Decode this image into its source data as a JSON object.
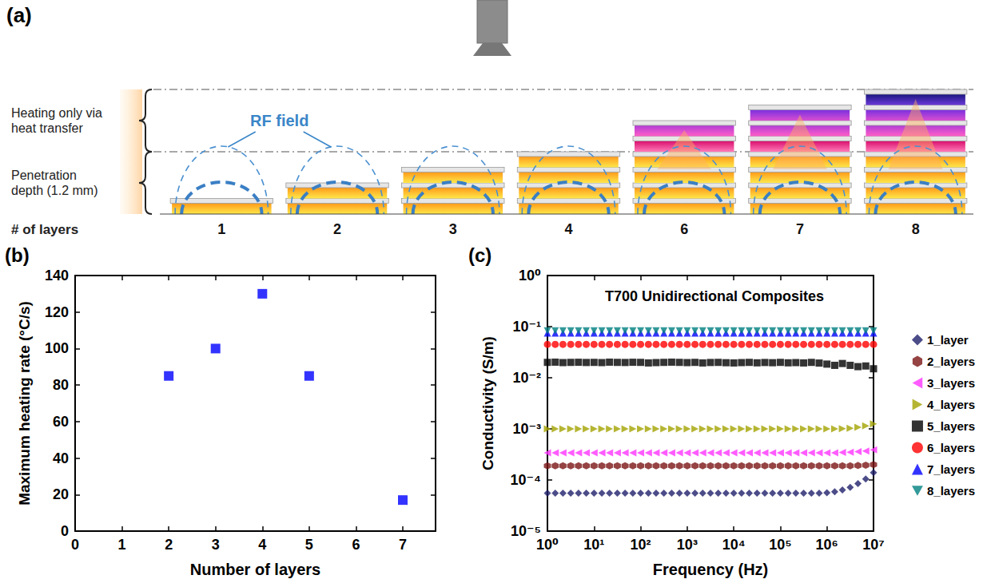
{
  "diagram": {
    "panel": "(a)",
    "heat_transfer_label": "Heating only via heat transfer",
    "penetration_label": "Penetration depth (1.2 mm)",
    "field_label": "RF field",
    "axis_label": "# of layers",
    "stacks": [
      1,
      2,
      3,
      4,
      6,
      7,
      8
    ]
  },
  "chart_data": [
    {
      "panel": "(b)",
      "type": "scatter",
      "x_label": "Number of layers",
      "y_label": "Maximum heating rate (°C/s)",
      "x": [
        2,
        3,
        4,
        5,
        7
      ],
      "values": [
        85,
        100,
        130,
        85,
        17
      ],
      "color": "#0000ff",
      "marker": "square",
      "xlim": [
        0,
        7.7
      ],
      "xticks": [
        0,
        1,
        2,
        3,
        4,
        5,
        6,
        7
      ],
      "ylim": [
        0,
        140
      ],
      "yticks": [
        0,
        20,
        40,
        60,
        80,
        100,
        120,
        140
      ],
      "grid": false
    },
    {
      "panel": "(c)",
      "type": "scatter",
      "title": "T700 Unidirectional Composites",
      "x_label": "Frequency (Hz)",
      "y_label": "Conductivity (S/m)",
      "log": true,
      "legend": "right",
      "grid": false,
      "xlim": [
        1,
        10000000
      ],
      "xticks": [
        {
          "value": 1,
          "label": "10⁰"
        },
        {
          "value": 10,
          "label": "10¹"
        },
        {
          "value": 100,
          "label": "10²"
        },
        {
          "value": 1000,
          "label": "10³"
        },
        {
          "value": 10000,
          "label": "10⁴"
        },
        {
          "value": 100000,
          "label": "10⁵"
        },
        {
          "value": 1000000,
          "label": "10⁶"
        },
        {
          "value": 10000000,
          "label": "10⁷"
        }
      ],
      "ylim": [
        1e-05,
        1
      ],
      "yticks": [
        {
          "value": 1e-05,
          "label": "10⁻⁵"
        },
        {
          "value": 0.0001,
          "label": "10⁻⁴"
        },
        {
          "value": 0.001,
          "label": "10⁻³"
        },
        {
          "value": 0.01,
          "label": "10⁻²"
        },
        {
          "value": 0.1,
          "label": "10⁻¹"
        },
        {
          "value": 1,
          "label": "10⁰"
        }
      ],
      "x": [
        1,
        1.47,
        2.15,
        3.16,
        4.64,
        6.81,
        10,
        14.7,
        21.5,
        31.6,
        46.4,
        68.1,
        100,
        147,
        215,
        316,
        464,
        681,
        1000,
        1470,
        2150,
        3160,
        4640,
        6810,
        10000,
        14700,
        21500,
        31600,
        46400,
        68100,
        100000,
        147000,
        215000,
        316000,
        464000,
        681000,
        1000000,
        1470000,
        2150000,
        3160000,
        4640000,
        6810000,
        10000000
      ],
      "series": [
        {
          "name": "1_layer",
          "color": "#1f1f6b",
          "marker": "diamond",
          "values": [
            5.5e-05,
            5.5e-05,
            5.5e-05,
            5.5e-05,
            5.5e-05,
            5.5e-05,
            5.5e-05,
            5.5e-05,
            5.5e-05,
            5.5e-05,
            5.5e-05,
            5.5e-05,
            5.5e-05,
            5.5e-05,
            5.5e-05,
            5.5e-05,
            5.5e-05,
            5.5e-05,
            5.5e-05,
            5.5e-05,
            5.5e-05,
            5.5e-05,
            5.5e-05,
            5.5e-05,
            5.5e-05,
            5.5e-05,
            5.5e-05,
            5.5e-05,
            5.5e-05,
            5.5e-05,
            5.5e-05,
            5.5e-05,
            5.5e-05,
            5.5e-05,
            5.5e-05,
            5.5e-05,
            5.6e-05,
            5.9e-05,
            6.4e-05,
            7.2e-05,
            8.5e-05,
            0.000105,
            0.00014
          ]
        },
        {
          "name": "2_layers",
          "color": "#7a1414",
          "marker": "hexagon",
          "values": [
            0.00019,
            0.00019,
            0.00019,
            0.00019,
            0.00019,
            0.00019,
            0.00019,
            0.00019,
            0.00019,
            0.00019,
            0.00019,
            0.00019,
            0.00019,
            0.00019,
            0.00019,
            0.00019,
            0.00019,
            0.00019,
            0.00019,
            0.00019,
            0.00019,
            0.00019,
            0.00019,
            0.00019,
            0.00019,
            0.00019,
            0.00019,
            0.00019,
            0.00019,
            0.00019,
            0.00019,
            0.00019,
            0.00019,
            0.00019,
            0.00019,
            0.00019,
            0.00019,
            0.00019,
            0.00019,
            0.00019,
            0.000192,
            0.000195,
            0.0002
          ]
        },
        {
          "name": "3_layers",
          "color": "#ff33ff",
          "marker": "triangle-left",
          "values": [
            0.00034,
            0.00034,
            0.00034,
            0.00034,
            0.00034,
            0.00034,
            0.00034,
            0.00034,
            0.00034,
            0.00034,
            0.00034,
            0.00034,
            0.00034,
            0.00034,
            0.00034,
            0.00034,
            0.00034,
            0.00034,
            0.00034,
            0.00034,
            0.00034,
            0.00034,
            0.00034,
            0.00034,
            0.00034,
            0.00034,
            0.00034,
            0.00034,
            0.00034,
            0.00034,
            0.00034,
            0.00034,
            0.00034,
            0.00034,
            0.00034,
            0.00034,
            0.00034,
            0.00034,
            0.000345,
            0.00035,
            0.00036,
            0.00037,
            0.00039
          ]
        },
        {
          "name": "4_layers",
          "color": "#a3a300",
          "marker": "triangle-right",
          "values": [
            0.001,
            0.001,
            0.001,
            0.001,
            0.001,
            0.001,
            0.001,
            0.001,
            0.001,
            0.001,
            0.001,
            0.001,
            0.001,
            0.001,
            0.001,
            0.001,
            0.001,
            0.001,
            0.001,
            0.001,
            0.001,
            0.001,
            0.001,
            0.001,
            0.001,
            0.001,
            0.001,
            0.001,
            0.001,
            0.001,
            0.001,
            0.001,
            0.001,
            0.001,
            0.001,
            0.001,
            0.001,
            0.001,
            0.00101,
            0.00103,
            0.00107,
            0.00114,
            0.00125
          ]
        },
        {
          "name": "5_layers",
          "color": "#000000",
          "marker": "square",
          "values": [
            0.02,
            0.0202,
            0.0198,
            0.02,
            0.0201,
            0.0199,
            0.02,
            0.0198,
            0.0202,
            0.02,
            0.0199,
            0.0201,
            0.02,
            0.0195,
            0.0198,
            0.02,
            0.0202,
            0.02,
            0.0198,
            0.02,
            0.0195,
            0.0199,
            0.02,
            0.0197,
            0.0195,
            0.0198,
            0.02,
            0.0196,
            0.0199,
            0.0197,
            0.02,
            0.0196,
            0.0198,
            0.0195,
            0.02,
            0.0194,
            0.0185,
            0.0175,
            0.019,
            0.0175,
            0.0165,
            0.017,
            0.015
          ]
        },
        {
          "name": "6_layers",
          "color": "#ff0000",
          "marker": "circle",
          "values": [
            0.045,
            0.045,
            0.045,
            0.045,
            0.045,
            0.045,
            0.045,
            0.045,
            0.045,
            0.045,
            0.045,
            0.045,
            0.045,
            0.045,
            0.045,
            0.045,
            0.045,
            0.045,
            0.045,
            0.045,
            0.045,
            0.045,
            0.045,
            0.045,
            0.045,
            0.045,
            0.045,
            0.045,
            0.045,
            0.045,
            0.045,
            0.045,
            0.045,
            0.045,
            0.045,
            0.045,
            0.045,
            0.045,
            0.045,
            0.045,
            0.045,
            0.045,
            0.045
          ]
        },
        {
          "name": "7_layers",
          "color": "#0000ff",
          "marker": "triangle",
          "values": [
            0.075,
            0.075,
            0.075,
            0.075,
            0.075,
            0.075,
            0.075,
            0.075,
            0.075,
            0.075,
            0.075,
            0.075,
            0.075,
            0.075,
            0.075,
            0.075,
            0.075,
            0.075,
            0.075,
            0.075,
            0.075,
            0.075,
            0.075,
            0.075,
            0.075,
            0.075,
            0.075,
            0.075,
            0.075,
            0.075,
            0.075,
            0.075,
            0.075,
            0.075,
            0.075,
            0.075,
            0.075,
            0.075,
            0.075,
            0.075,
            0.075,
            0.075,
            0.075
          ]
        },
        {
          "name": "8_layers",
          "color": "#008080",
          "marker": "triangle-down",
          "values": [
            0.083,
            0.083,
            0.083,
            0.083,
            0.083,
            0.083,
            0.083,
            0.083,
            0.083,
            0.083,
            0.083,
            0.083,
            0.083,
            0.083,
            0.083,
            0.083,
            0.083,
            0.083,
            0.083,
            0.083,
            0.083,
            0.083,
            0.083,
            0.083,
            0.083,
            0.083,
            0.083,
            0.083,
            0.083,
            0.083,
            0.083,
            0.083,
            0.083,
            0.083,
            0.083,
            0.083,
            0.083,
            0.083,
            0.083,
            0.083,
            0.083,
            0.083,
            0.083
          ]
        }
      ]
    }
  ]
}
